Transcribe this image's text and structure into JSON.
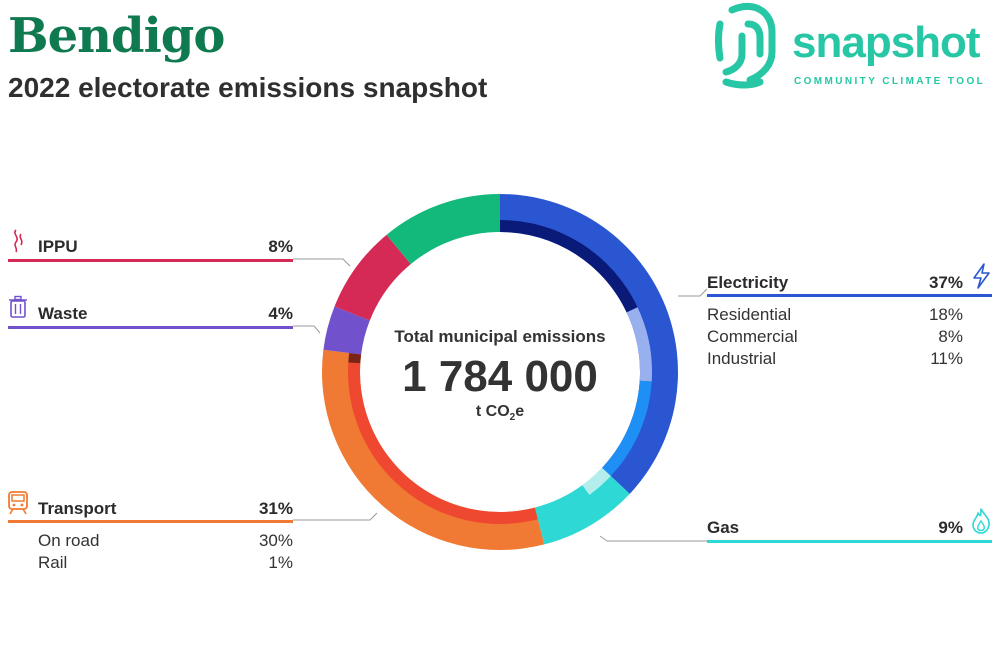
{
  "header": {
    "title": "Bendigo",
    "subtitle": "2022 electorate emissions snapshot",
    "logo_word": "snapshot",
    "logo_tagline": "COMMUNITY CLIMATE TOOL"
  },
  "center": {
    "label": "Total municipal emissions",
    "value": "1 784 000",
    "unit_prefix": "t CO",
    "unit_sub": "2",
    "unit_suffix": "e"
  },
  "sectors": {
    "ippu": {
      "name": "IPPU",
      "pct_label": "8%",
      "icon": "smoke-icon"
    },
    "waste": {
      "name": "Waste",
      "pct_label": "4%",
      "icon": "bin-icon"
    },
    "transport": {
      "name": "Transport",
      "pct_label": "31%",
      "icon": "train-icon",
      "subs": [
        {
          "name": "On road",
          "pct_label": "30%"
        },
        {
          "name": "Rail",
          "pct_label": "1%"
        }
      ]
    },
    "electricity": {
      "name": "Electricity",
      "pct_label": "37%",
      "icon": "lightning-icon",
      "subs": [
        {
          "name": "Residential",
          "pct_label": "18%"
        },
        {
          "name": "Commercial",
          "pct_label": "8%"
        },
        {
          "name": "Industrial",
          "pct_label": "11%"
        }
      ]
    },
    "gas": {
      "name": "Gas",
      "pct_label": "9%",
      "icon": "flame-icon"
    }
  },
  "colors": {
    "electricity": "#2a56d1",
    "gas": "#2ed8d4",
    "transport": "#f07a33",
    "waste": "#7152cc",
    "ippu": "#d42a55",
    "agriculture": "#12b97b",
    "brand": "#27c7a6",
    "title": "#0f7a4f"
  },
  "chart_data": {
    "type": "pie",
    "title": "Total municipal emissions",
    "total": 1784000,
    "unit": "t CO2e",
    "slices": [
      {
        "name": "Electricity",
        "value": 37,
        "color": "#2a56d1",
        "subs": [
          {
            "name": "Residential",
            "value": 18,
            "color": "#0a1a78"
          },
          {
            "name": "Commercial",
            "value": 8,
            "color": "#98b0ee"
          },
          {
            "name": "Industrial",
            "value": 11,
            "color": "#1e90f5"
          }
        ]
      },
      {
        "name": "Gas",
        "value": 9,
        "color": "#2ed8d4",
        "subs": [
          {
            "value": 3,
            "color": "#b4eeec"
          },
          {
            "value": 6,
            "color": "#2ed8d4"
          }
        ]
      },
      {
        "name": "Transport",
        "value": 31,
        "color": "#f07a33",
        "subs": [
          {
            "name": "On road",
            "value": 30,
            "color": "#ef4830"
          },
          {
            "name": "Rail",
            "value": 1,
            "color": "#7a2418"
          }
        ]
      },
      {
        "name": "Waste",
        "value": 4,
        "color": "#7152cc"
      },
      {
        "name": "IPPU",
        "value": 8,
        "color": "#d42a55"
      },
      {
        "value": 11,
        "color": "#12b97b"
      }
    ]
  }
}
